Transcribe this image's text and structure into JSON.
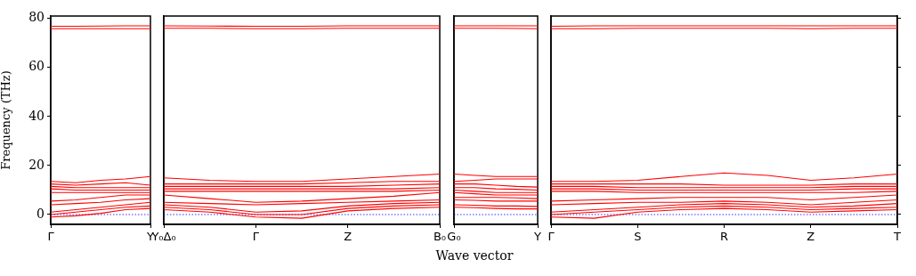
{
  "chart_data": [
    {
      "type": "line",
      "ylabel": "Frequency (THz)",
      "categories": [
        "Γ",
        null,
        null,
        null,
        "Y"
      ],
      "ylim": [
        -4,
        81
      ],
      "yticks": [
        0,
        20,
        40,
        60,
        80
      ],
      "marker": "none",
      "line_style": "solid",
      "ref_lines": [
        {
          "axis": "y",
          "value": 0,
          "color": "#0000ff",
          "line_style": "dotted"
        }
      ],
      "series": [
        {
          "color": "#ff0000",
          "values": [
            -1,
            -0.5,
            0.5,
            2,
            2.5
          ]
        },
        {
          "color": "#ff0000",
          "values": [
            0,
            1,
            2,
            3,
            3.5
          ]
        },
        {
          "color": "#ff0000",
          "values": [
            1,
            2,
            3,
            4,
            5
          ]
        },
        {
          "color": "#ff0000",
          "values": [
            4,
            4.5,
            5,
            6,
            6.5
          ]
        },
        {
          "color": "#ff0000",
          "values": [
            5.5,
            6,
            7,
            8,
            8
          ]
        },
        {
          "color": "#ff0000",
          "values": [
            9,
            9,
            9,
            9,
            9
          ]
        },
        {
          "color": "#ff0000",
          "values": [
            10.5,
            10,
            10,
            10,
            10
          ]
        },
        {
          "color": "#ff0000",
          "values": [
            11.5,
            11,
            11,
            11,
            11
          ]
        },
        {
          "color": "#ff0000",
          "values": [
            12.5,
            12,
            12.5,
            13,
            12
          ]
        },
        {
          "color": "#ff0000",
          "values": [
            13.5,
            13,
            14,
            14.5,
            15.5
          ]
        },
        {
          "color": "#ff0000",
          "values": [
            75.8,
            75.8,
            75.8,
            75.8,
            75.8
          ]
        },
        {
          "color": "#ff0000",
          "values": [
            76.8,
            76.8,
            76.9,
            77,
            77
          ]
        }
      ]
    },
    {
      "type": "line",
      "categories": [
        "Y₀Δ₀",
        null,
        "Γ",
        null,
        "Z",
        null,
        "B₀"
      ],
      "ylim": [
        -4,
        81
      ],
      "yticks": [
        0,
        20,
        40,
        60,
        80
      ],
      "tick_labels": "x",
      "marker": "none",
      "line_style": "solid",
      "ref_lines": [
        {
          "axis": "y",
          "value": 0,
          "color": "#0000ff",
          "line_style": "dotted"
        }
      ],
      "series": [
        {
          "color": "#ff0000",
          "values": [
            2,
            1,
            -1,
            -1.5,
            1.5,
            2.5,
            3
          ]
        },
        {
          "color": "#ff0000",
          "values": [
            3,
            2,
            0,
            0,
            2.5,
            3.5,
            4
          ]
        },
        {
          "color": "#ff0000",
          "values": [
            4,
            3,
            1,
            1.5,
            3.5,
            4.5,
            5
          ]
        },
        {
          "color": "#ff0000",
          "values": [
            5,
            4.5,
            4,
            4.5,
            5,
            5.5,
            6
          ]
        },
        {
          "color": "#ff0000",
          "values": [
            8,
            6.5,
            5,
            5.5,
            6.5,
            7.5,
            9
          ]
        },
        {
          "color": "#ff0000",
          "values": [
            9.5,
            9.5,
            9.5,
            9.5,
            9.5,
            9.5,
            10
          ]
        },
        {
          "color": "#ff0000",
          "values": [
            10.5,
            10.5,
            10.5,
            10.5,
            10.5,
            10.5,
            11
          ]
        },
        {
          "color": "#ff0000",
          "values": [
            11.5,
            11.5,
            11.5,
            11.5,
            11.5,
            12,
            12.5
          ]
        },
        {
          "color": "#ff0000",
          "values": [
            12.5,
            12.5,
            12.5,
            12.5,
            13,
            13.5,
            13.5
          ]
        },
        {
          "color": "#ff0000",
          "values": [
            15,
            14,
            13.5,
            13.5,
            14.5,
            15.5,
            16.5
          ]
        },
        {
          "color": "#ff0000",
          "values": [
            76,
            76,
            75.8,
            75.8,
            76,
            76,
            76
          ]
        },
        {
          "color": "#ff0000",
          "values": [
            77,
            76.9,
            76.8,
            76.8,
            77,
            77,
            77
          ]
        }
      ]
    },
    {
      "type": "line",
      "xlabel": "Wave vector",
      "categories": [
        "G₀",
        null,
        null,
        null,
        "Y"
      ],
      "ylim": [
        -4,
        81
      ],
      "yticks": [
        0,
        20,
        40,
        60,
        80
      ],
      "tick_labels": "x",
      "marker": "none",
      "line_style": "solid",
      "ref_lines": [
        {
          "axis": "y",
          "value": 0,
          "color": "#0000ff",
          "line_style": "dotted"
        }
      ],
      "series": [
        {
          "color": "#ff0000",
          "values": [
            3,
            2.8,
            2.5,
            2.3,
            2.3
          ]
        },
        {
          "color": "#ff0000",
          "values": [
            4,
            3.8,
            3.5,
            3.5,
            3.3
          ]
        },
        {
          "color": "#ff0000",
          "values": [
            6,
            5.8,
            5.5,
            5.5,
            5.5
          ]
        },
        {
          "color": "#ff0000",
          "values": [
            7,
            7,
            7,
            6.8,
            6.5
          ]
        },
        {
          "color": "#ff0000",
          "values": [
            9,
            8.5,
            8,
            8,
            8
          ]
        },
        {
          "color": "#ff0000",
          "values": [
            10,
            9.5,
            9,
            9,
            9
          ]
        },
        {
          "color": "#ff0000",
          "values": [
            11,
            11,
            10.5,
            10.3,
            10
          ]
        },
        {
          "color": "#ff0000",
          "values": [
            12.5,
            12.5,
            12,
            11.5,
            11.2
          ]
        },
        {
          "color": "#ff0000",
          "values": [
            13.5,
            14,
            14.5,
            14.5,
            14.5
          ]
        },
        {
          "color": "#ff0000",
          "values": [
            16.5,
            16,
            15.5,
            15.5,
            15.5
          ]
        },
        {
          "color": "#ff0000",
          "values": [
            76,
            76,
            76,
            75.9,
            75.8
          ]
        },
        {
          "color": "#ff0000",
          "values": [
            77,
            77,
            77,
            77,
            77
          ]
        }
      ]
    },
    {
      "type": "line",
      "categories": [
        "Γ",
        null,
        "S",
        null,
        "R",
        null,
        "Z",
        null,
        "T"
      ],
      "ylim": [
        -4,
        81
      ],
      "yticks": [
        0,
        20,
        40,
        60,
        80
      ],
      "tick_labels": "x",
      "marker": "none",
      "line_style": "solid",
      "ref_lines": [
        {
          "axis": "y",
          "value": 0,
          "color": "#0000ff",
          "line_style": "dotted"
        }
      ],
      "series": [
        {
          "color": "#ff0000",
          "values": [
            -1,
            -1.5,
            1,
            2,
            2.5,
            2,
            1,
            1.5,
            2
          ]
        },
        {
          "color": "#ff0000",
          "values": [
            0,
            1,
            2,
            3,
            3.5,
            3,
            2,
            2.5,
            3
          ]
        },
        {
          "color": "#ff0000",
          "values": [
            1,
            2,
            3,
            4,
            4.5,
            4,
            3,
            3.5,
            4.5
          ]
        },
        {
          "color": "#ff0000",
          "values": [
            4,
            4.5,
            5,
            5,
            5.5,
            5,
            4,
            5,
            6
          ]
        },
        {
          "color": "#ff0000",
          "values": [
            5.5,
            6,
            6.5,
            7,
            7,
            7,
            6,
            7,
            8
          ]
        },
        {
          "color": "#ff0000",
          "values": [
            9.5,
            9.5,
            9,
            9,
            9,
            9,
            9,
            9,
            9.5
          ]
        },
        {
          "color": "#ff0000",
          "values": [
            10.5,
            10.5,
            10,
            10,
            10,
            10,
            10,
            10.5,
            10.5
          ]
        },
        {
          "color": "#ff0000",
          "values": [
            11.5,
            11.5,
            11,
            11,
            11,
            11,
            11,
            11.5,
            11.5
          ]
        },
        {
          "color": "#ff0000",
          "values": [
            12.5,
            12.5,
            12.5,
            12.5,
            12,
            12,
            12,
            12.5,
            12.5
          ]
        },
        {
          "color": "#ff0000",
          "values": [
            13.5,
            13.5,
            14,
            15.5,
            17,
            16,
            14,
            15,
            16.5
          ]
        },
        {
          "color": "#ff0000",
          "values": [
            75.8,
            75.8,
            76,
            76,
            76,
            76,
            75.8,
            76,
            76
          ]
        },
        {
          "color": "#ff0000",
          "values": [
            76.8,
            77,
            77,
            77,
            77,
            77,
            77,
            77,
            77
          ]
        }
      ]
    }
  ]
}
